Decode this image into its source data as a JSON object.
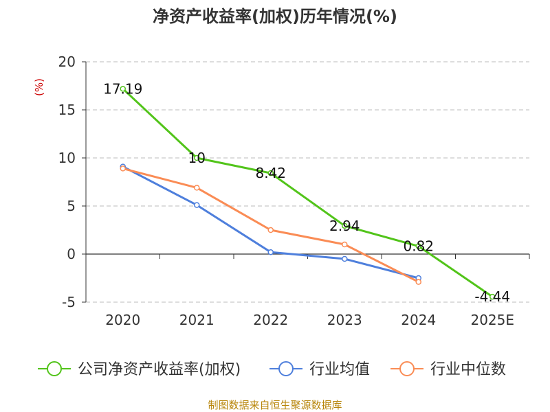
{
  "chart_data": {
    "type": "line",
    "title": "净资产收益率(加权)历年情况(%)",
    "ylabel": "(%)",
    "categories": [
      "2020",
      "2021",
      "2022",
      "2023",
      "2024",
      "2025E"
    ],
    "ylim": [
      -5,
      20
    ],
    "yticks": [
      20,
      15,
      10,
      5,
      0,
      -5
    ],
    "grid": true,
    "series": [
      {
        "name": "公司净资产收益率(加权)",
        "color": "#52c41a",
        "values": [
          17.19,
          10,
          8.42,
          2.94,
          0.82,
          -4.44
        ],
        "labels": [
          "17.19",
          "10",
          "8.42",
          "2.94",
          "0.82",
          "-4.44"
        ]
      },
      {
        "name": "行业均值",
        "color": "#4e7fdc",
        "values": [
          9.1,
          5.1,
          0.2,
          -0.5,
          -2.5,
          null
        ]
      },
      {
        "name": "行业中位数",
        "color": "#fa8c55",
        "values": [
          8.9,
          6.9,
          2.5,
          1.0,
          -2.9,
          null
        ]
      }
    ],
    "legend_position": "bottom"
  },
  "footer": "制图数据来自恒生聚源数据库"
}
